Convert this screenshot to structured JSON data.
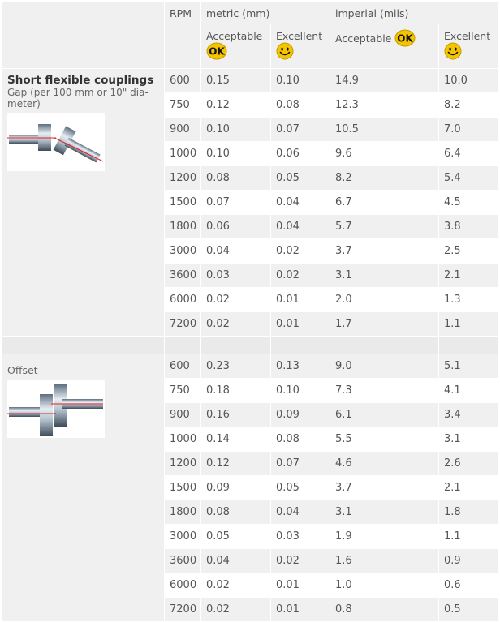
{
  "header": {
    "rpm": "RPM",
    "metric": "metric (mm)",
    "imperial": "imperial (mils)",
    "acceptable": "Acceptable",
    "excellent": "Excellent",
    "ok_badge": "OK",
    "ok_icon": "ok-icon",
    "smiley_icon": "smiley-icon",
    "badge_color": "#f3c400"
  },
  "sections": [
    {
      "title": "Short flexible couplings",
      "subtitle_line1": "Gap (per 100 mm or 10\" dia-",
      "subtitle_line2": "meter)",
      "rows": [
        [
          "600",
          "0.15",
          "0.10",
          "14.9",
          "10.0"
        ],
        [
          "750",
          "0.12",
          "0.08",
          "12.3",
          "8.2"
        ],
        [
          "900",
          "0.10",
          "0.07",
          "10.5",
          "7.0"
        ],
        [
          "1000",
          "0.10",
          "0.06",
          "9.6",
          "6.4"
        ],
        [
          "1200",
          "0.08",
          "0.05",
          "8.2",
          "5.4"
        ],
        [
          "1500",
          "0.07",
          "0.04",
          "6.7",
          "4.5"
        ],
        [
          "1800",
          "0.06",
          "0.04",
          "5.7",
          "3.8"
        ],
        [
          "3000",
          "0.04",
          "0.02",
          "3.7",
          "2.5"
        ],
        [
          "3600",
          "0.03",
          "0.02",
          "3.1",
          "2.1"
        ],
        [
          "6000",
          "0.02",
          "0.01",
          "2.0",
          "1.3"
        ],
        [
          "7200",
          "0.02",
          "0.01",
          "1.7",
          "1.1"
        ]
      ]
    },
    {
      "title": "Offset",
      "rows": [
        [
          "600",
          "0.23",
          "0.13",
          "9.0",
          "5.1"
        ],
        [
          "750",
          "0.18",
          "0.10",
          "7.3",
          "4.1"
        ],
        [
          "900",
          "0.16",
          "0.09",
          "6.1",
          "3.4"
        ],
        [
          "1000",
          "0.14",
          "0.08",
          "5.5",
          "3.1"
        ],
        [
          "1200",
          "0.12",
          "0.07",
          "4.6",
          "2.6"
        ],
        [
          "1500",
          "0.09",
          "0.05",
          "3.7",
          "2.1"
        ],
        [
          "1800",
          "0.08",
          "0.04",
          "3.1",
          "1.8"
        ],
        [
          "3000",
          "0.05",
          "0.03",
          "1.9",
          "1.1"
        ],
        [
          "3600",
          "0.04",
          "0.02",
          "1.6",
          "0.9"
        ],
        [
          "6000",
          "0.02",
          "0.01",
          "1.0",
          "0.6"
        ],
        [
          "7200",
          "0.02",
          "0.01",
          "0.8",
          "0.5"
        ]
      ]
    }
  ]
}
